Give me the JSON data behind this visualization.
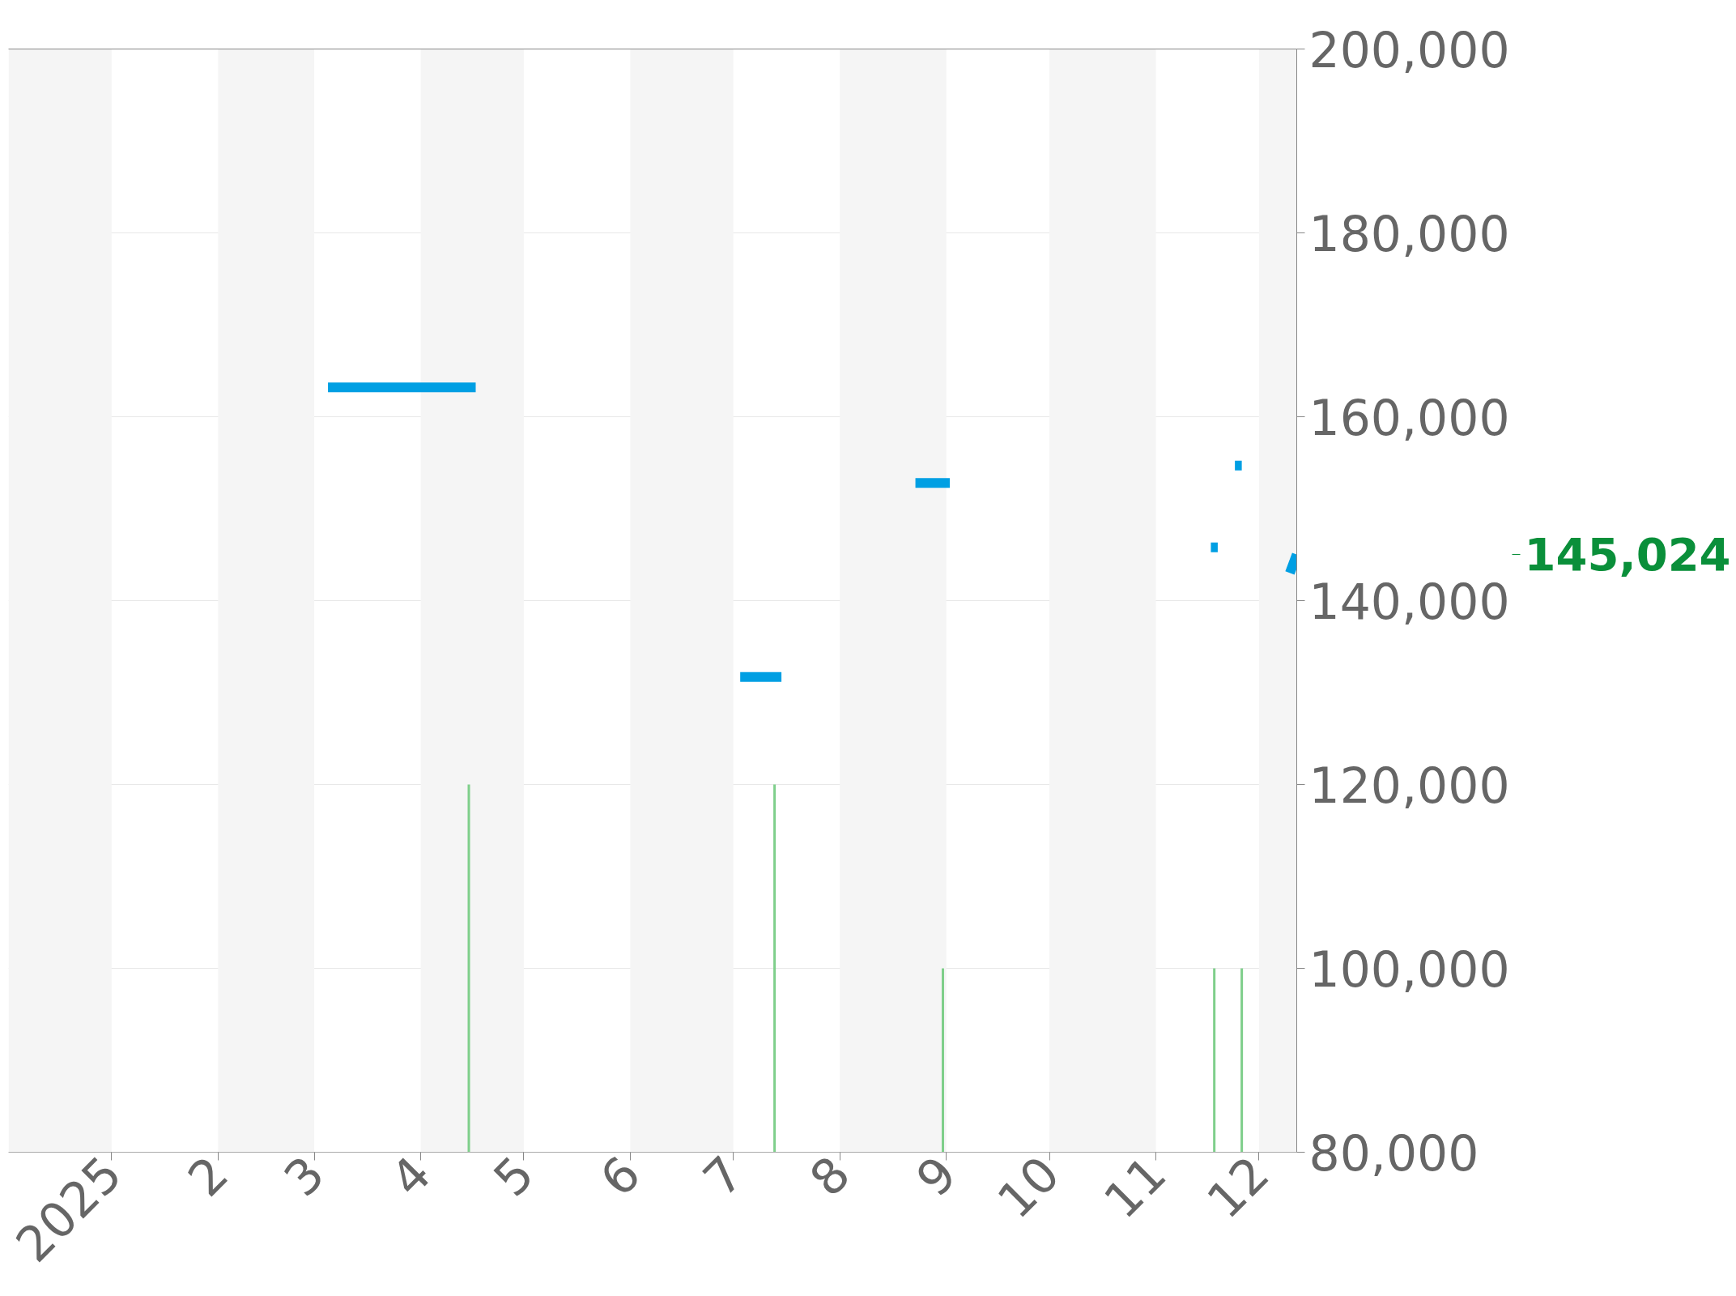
{
  "chart_data": {
    "type": "line",
    "x": [
      "2025-03-05",
      "2025-04-17",
      "2025-04-18",
      "2025-07-03",
      "2025-07-15",
      "2025-07-16",
      "2025-08-23",
      "2025-09-02",
      "2025-09-03",
      "2025-11-17",
      "2025-11-19",
      "2025-11-20",
      "2025-11-24",
      "2025-11-26",
      "2025-11-27",
      "2025-12-10",
      "2025-12-12"
    ],
    "series": [
      {
        "color": "#009fe3",
        "values": [
          163200,
          163200,
          null,
          131700,
          131700,
          null,
          152800,
          152800,
          null,
          145800,
          145800,
          null,
          154700,
          154700,
          null,
          143000,
          145024
        ]
      },
      {
        "type": "bar",
        "color": "#7fcf8b",
        "x": [
          "2025-04-15",
          "2025-07-13",
          "2025-08-31",
          "2025-11-18",
          "2025-11-26"
        ],
        "values": [
          120000,
          120000,
          100000,
          100000,
          100000
        ]
      }
    ],
    "xlim": [
      "2024-12-02",
      "2025-12-12"
    ],
    "xticks": [
      {
        "value": "2025-01-01",
        "label": "2025"
      },
      {
        "value": "2025-02-01",
        "label": "2"
      },
      {
        "value": "2025-03-01",
        "label": "3"
      },
      {
        "value": "2025-04-01",
        "label": "4"
      },
      {
        "value": "2025-05-01",
        "label": "5"
      },
      {
        "value": "2025-06-01",
        "label": "6"
      },
      {
        "value": "2025-07-01",
        "label": "7"
      },
      {
        "value": "2025-08-01",
        "label": "8"
      },
      {
        "value": "2025-09-01",
        "label": "9"
      },
      {
        "value": "2025-10-01",
        "label": "10"
      },
      {
        "value": "2025-11-01",
        "label": "11"
      },
      {
        "value": "2025-12-01",
        "label": "12"
      }
    ],
    "ylim": [
      80000,
      200000
    ],
    "yticks": [
      {
        "value": 80000,
        "label": "80,000"
      },
      {
        "value": 100000,
        "label": "100,000"
      },
      {
        "value": 120000,
        "label": "120,000"
      },
      {
        "value": 140000,
        "label": "140,000"
      },
      {
        "value": 160000,
        "label": "160,000"
      },
      {
        "value": 180000,
        "label": "180,000"
      },
      {
        "value": 200000,
        "label": "200,000"
      }
    ],
    "grid": "y",
    "bands": [
      {
        "axis": "x",
        "from": "2024-12-02",
        "to": "2025-01-01",
        "color": "#f5f5f5"
      },
      {
        "axis": "x",
        "from": "2025-02-01",
        "to": "2025-03-01",
        "color": "#f5f5f5"
      },
      {
        "axis": "x",
        "from": "2025-04-01",
        "to": "2025-05-01",
        "color": "#f5f5f5"
      },
      {
        "axis": "x",
        "from": "2025-06-01",
        "to": "2025-07-01",
        "color": "#f5f5f5"
      },
      {
        "axis": "x",
        "from": "2025-08-01",
        "to": "2025-09-01",
        "color": "#f5f5f5"
      },
      {
        "axis": "x",
        "from": "2025-10-01",
        "to": "2025-11-01",
        "color": "#f5f5f5"
      },
      {
        "axis": "x",
        "from": "2025-12-01",
        "to": "2025-12-12",
        "color": "#f5f5f5"
      }
    ],
    "annotations": [
      "145,024"
    ]
  }
}
